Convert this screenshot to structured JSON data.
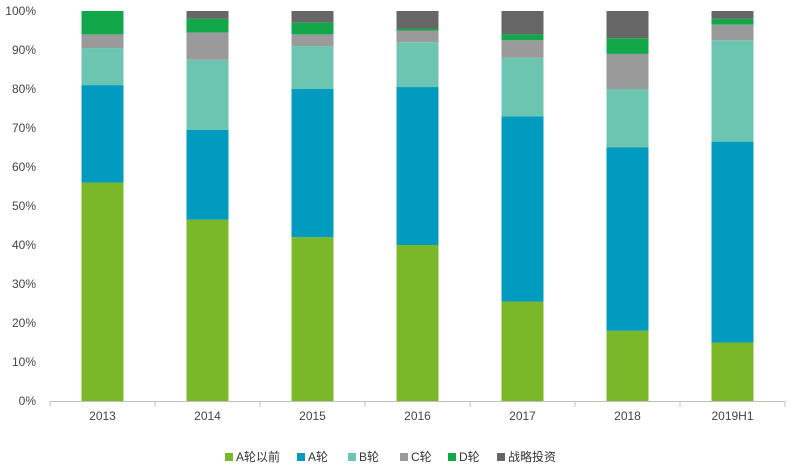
{
  "chart_data": {
    "type": "bar",
    "stacked": true,
    "title": "",
    "xlabel": "",
    "ylabel": "",
    "categories": [
      "2013",
      "2014",
      "2015",
      "2016",
      "2017",
      "2018",
      "2019H1"
    ],
    "ylim": [
      0,
      100
    ],
    "yticks": [
      "0%",
      "10%",
      "20%",
      "30%",
      "40%",
      "50%",
      "60%",
      "70%",
      "80%",
      "90%",
      "100%"
    ],
    "grid": false,
    "legend_position": "bottom",
    "series": [
      {
        "name": "A轮以前",
        "color": "#7ab829",
        "values": [
          56,
          46.5,
          42,
          40,
          25.5,
          18,
          15
        ]
      },
      {
        "name": "A轮",
        "color": "#009bbf",
        "values": [
          25,
          23,
          38,
          40.5,
          47.5,
          47,
          51.5
        ]
      },
      {
        "name": "B轮",
        "color": "#6cc5b0",
        "values": [
          9.5,
          18,
          11,
          11.5,
          15,
          15,
          26
        ]
      },
      {
        "name": "C轮",
        "color": "#9a9a9a",
        "values": [
          3.5,
          7,
          3,
          3,
          4.5,
          9,
          4
        ]
      },
      {
        "name": "D轮",
        "color": "#12a84a",
        "values": [
          6,
          3.5,
          3,
          0.5,
          1.5,
          4,
          1.5
        ]
      },
      {
        "name": "战略投资",
        "color": "#666666",
        "values": [
          0,
          2,
          3,
          4.5,
          6,
          7,
          2
        ]
      }
    ]
  }
}
